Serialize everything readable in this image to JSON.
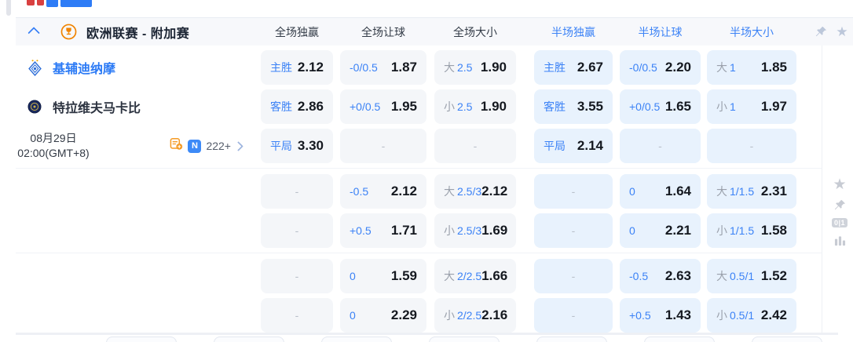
{
  "league_header": {
    "title": "欧洲联赛 - 附加赛",
    "columns": [
      {
        "label": "全场独赢",
        "scope": "full"
      },
      {
        "label": "全场让球",
        "scope": "full"
      },
      {
        "label": "全场大小",
        "scope": "full"
      },
      {
        "label": "半场独赢",
        "scope": "half"
      },
      {
        "label": "半场让球",
        "scope": "half"
      },
      {
        "label": "半场大小",
        "scope": "half"
      }
    ]
  },
  "match": {
    "home_team": "基辅迪纳摩",
    "away_team": "特拉维夫马卡比",
    "date": "08月29日",
    "time": "02:00(GMT+8)",
    "more_markets_count": "222+",
    "n_badge": "N"
  },
  "right_toolbar": {
    "corner_badge": "0|1"
  },
  "odds_grid": {
    "rows": [
      {
        "cells": [
          {
            "type": "win",
            "label": "主胜",
            "odds": "2.12"
          },
          {
            "type": "hcp",
            "label": "-0/0.5",
            "odds": "1.87"
          },
          {
            "type": "ou",
            "prefix": "大",
            "line": "2.5",
            "odds": "1.90"
          },
          {
            "type": "win",
            "label": "主胜",
            "odds": "2.67"
          },
          {
            "type": "hcp",
            "label": "-0/0.5",
            "odds": "2.20"
          },
          {
            "type": "ou",
            "prefix": "大",
            "line": "1",
            "odds": "1.85"
          }
        ]
      },
      {
        "cells": [
          {
            "type": "win",
            "label": "客胜",
            "odds": "2.86"
          },
          {
            "type": "hcp",
            "label": "+0/0.5",
            "odds": "1.95"
          },
          {
            "type": "ou",
            "prefix": "小",
            "line": "2.5",
            "odds": "1.90"
          },
          {
            "type": "win",
            "label": "客胜",
            "odds": "3.55"
          },
          {
            "type": "hcp",
            "label": "+0/0.5",
            "odds": "1.65"
          },
          {
            "type": "ou",
            "prefix": "小",
            "line": "1",
            "odds": "1.97"
          }
        ]
      },
      {
        "cells": [
          {
            "type": "win",
            "label": "平局",
            "odds": "3.30"
          },
          {
            "type": "empty",
            "label": "-"
          },
          {
            "type": "empty",
            "label": "-"
          },
          {
            "type": "win",
            "label": "平局",
            "odds": "2.14"
          },
          {
            "type": "empty",
            "label": "-"
          },
          {
            "type": "empty",
            "label": "-"
          }
        ]
      },
      {
        "cells": [
          {
            "type": "empty",
            "label": "-"
          },
          {
            "type": "hcp",
            "label": "-0.5",
            "odds": "2.12"
          },
          {
            "type": "ou",
            "prefix": "大",
            "line": "2.5/3",
            "odds": "2.12"
          },
          {
            "type": "empty",
            "label": "-"
          },
          {
            "type": "hcp",
            "label": "0",
            "odds": "1.64"
          },
          {
            "type": "ou",
            "prefix": "大",
            "line": "1/1.5",
            "odds": "2.31"
          }
        ]
      },
      {
        "cells": [
          {
            "type": "empty",
            "label": "-"
          },
          {
            "type": "hcp",
            "label": "+0.5",
            "odds": "1.71"
          },
          {
            "type": "ou",
            "prefix": "小",
            "line": "2.5/3",
            "odds": "1.69"
          },
          {
            "type": "empty",
            "label": "-"
          },
          {
            "type": "hcp",
            "label": "0",
            "odds": "2.21"
          },
          {
            "type": "ou",
            "prefix": "小",
            "line": "1/1.5",
            "odds": "1.58"
          }
        ]
      },
      {
        "cells": [
          {
            "type": "empty",
            "label": "-"
          },
          {
            "type": "hcp",
            "label": "0",
            "odds": "1.59"
          },
          {
            "type": "ou",
            "prefix": "大",
            "line": "2/2.5",
            "odds": "1.66"
          },
          {
            "type": "empty",
            "label": "-"
          },
          {
            "type": "hcp",
            "label": "-0.5",
            "odds": "2.63"
          },
          {
            "type": "ou",
            "prefix": "大",
            "line": "0.5/1",
            "odds": "1.52"
          }
        ]
      },
      {
        "cells": [
          {
            "type": "empty",
            "label": "-"
          },
          {
            "type": "hcp",
            "label": "0",
            "odds": "2.29"
          },
          {
            "type": "ou",
            "prefix": "小",
            "line": "2/2.5",
            "odds": "2.16"
          },
          {
            "type": "empty",
            "label": "-"
          },
          {
            "type": "hcp",
            "label": "+0.5",
            "odds": "1.43"
          },
          {
            "type": "ou",
            "prefix": "小",
            "line": "0.5/1",
            "odds": "2.42"
          }
        ]
      }
    ]
  },
  "colors": {
    "accent_blue": "#3b82f6",
    "ft_cell_bg": "#f4f6f9",
    "ht_cell_bg": "#e8f2fd",
    "odds_text": "#14181f",
    "muted_gray": "#9aa0ab",
    "league_icon_orange": "#f08300",
    "home_team_blue": "#2b7af5"
  }
}
